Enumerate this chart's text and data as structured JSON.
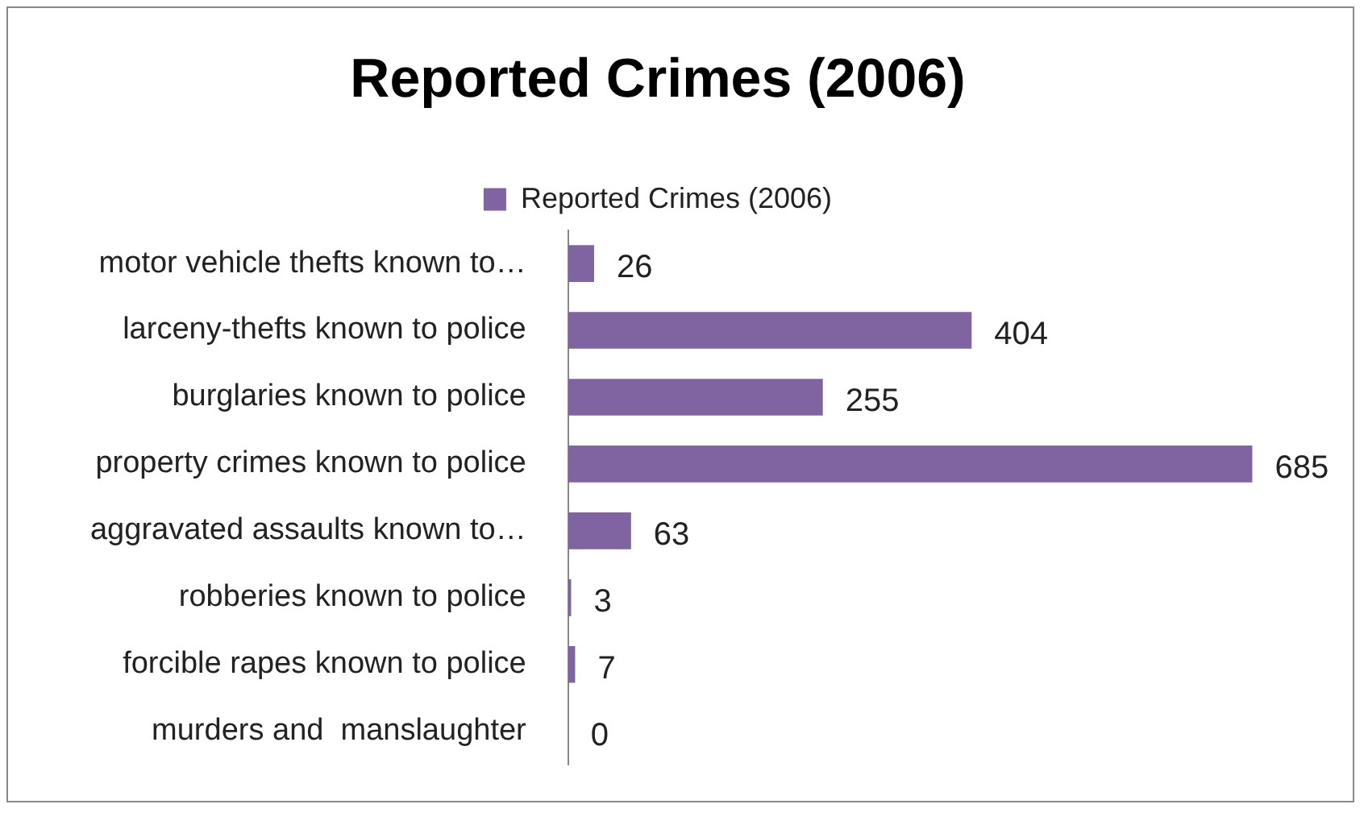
{
  "chart_data": {
    "type": "bar",
    "orientation": "horizontal",
    "title": "Reported Crimes (2006)",
    "categories": [
      "motor vehicle thefts known to…",
      "larceny-thefts known to police",
      "burglaries known to police",
      "property crimes known to police",
      "aggravated assaults known to…",
      "robberies known to police",
      "forcible rapes known to police",
      "murders and  manslaughter"
    ],
    "series": [
      {
        "name": "Reported Crimes (2006)",
        "color": "#8064a2",
        "values": [
          26,
          404,
          255,
          685,
          63,
          3,
          7,
          0
        ]
      }
    ],
    "data_labels": true,
    "legend": "top",
    "tick_labels": "y"
  }
}
